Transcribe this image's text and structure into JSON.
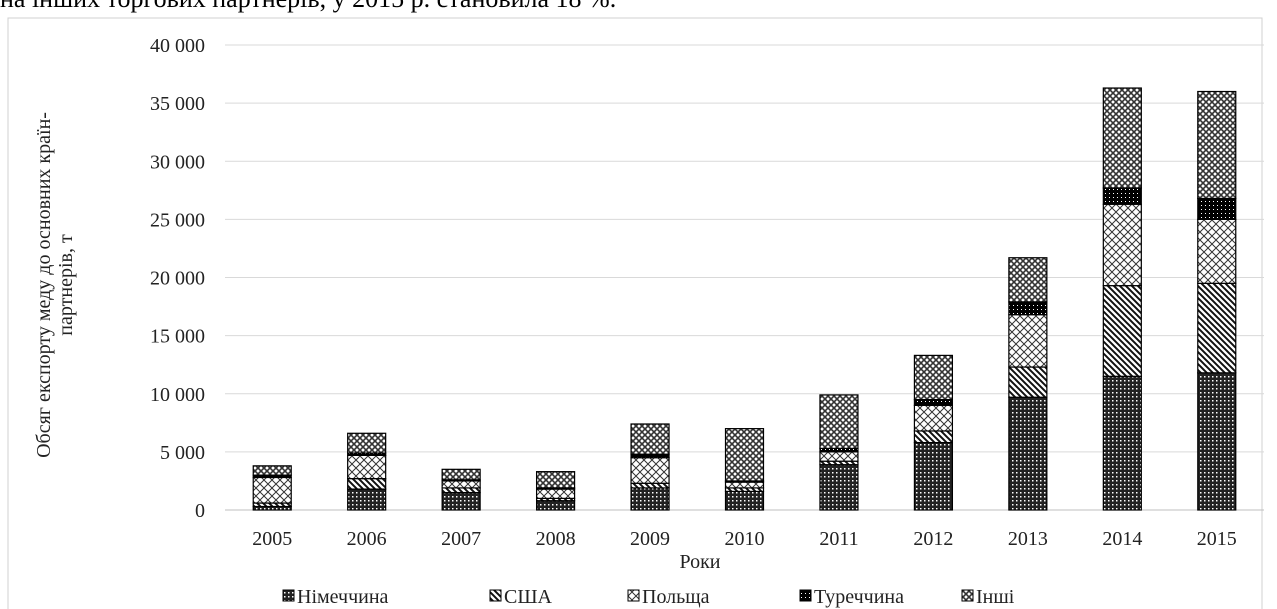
{
  "context_text": "на інших торгових партнерів, у 2015 р. становила 18 %.",
  "chart_data": {
    "type": "stacked_bar",
    "ylabel": [
      "Обсяг експорту меду до основних країн-",
      "партнерів, т"
    ],
    "xlabel": "Роки",
    "categories": [
      "2005",
      "2006",
      "2007",
      "2008",
      "2009",
      "2010",
      "2011",
      "2012",
      "2013",
      "2014",
      "2015"
    ],
    "series": [
      {
        "name": "Німеччина",
        "color": "#000000",
        "values": [
          300,
          1800,
          1500,
          800,
          1900,
          1600,
          3900,
          5800,
          9700,
          11500,
          11800
        ]
      },
      {
        "name": "США",
        "color": "#000000",
        "values": [
          300,
          900,
          400,
          200,
          400,
          300,
          300,
          1000,
          2600,
          7800,
          7700
        ]
      },
      {
        "name": "Польща",
        "color": "#000000",
        "values": [
          2200,
          2000,
          600,
          800,
          2200,
          500,
          800,
          2200,
          4500,
          7000,
          5500
        ]
      },
      {
        "name": "Туреччина",
        "color": "#000000",
        "values": [
          200,
          200,
          100,
          100,
          300,
          100,
          300,
          500,
          1100,
          1400,
          1800
        ]
      },
      {
        "name": "Інші",
        "color": "#000000",
        "values": [
          800,
          1700,
          900,
          1400,
          2600,
          4500,
          4600,
          3800,
          3800,
          8600,
          9200
        ]
      }
    ],
    "ylim": [
      0,
      40000
    ],
    "yticks": [
      0,
      {
        "value": 5000,
        "label": "5 000"
      },
      {
        "value": 10000,
        "label": "10 000"
      },
      {
        "value": 15000,
        "label": "15 000"
      },
      {
        "value": 20000,
        "label": "20 000"
      },
      {
        "value": 25000,
        "label": "25 000"
      },
      {
        "value": 30000,
        "label": "30 000"
      },
      {
        "value": 35000,
        "label": "35 000"
      },
      {
        "value": 40000,
        "label": "40 000"
      }
    ],
    "grid": true,
    "legend": "bottom"
  }
}
